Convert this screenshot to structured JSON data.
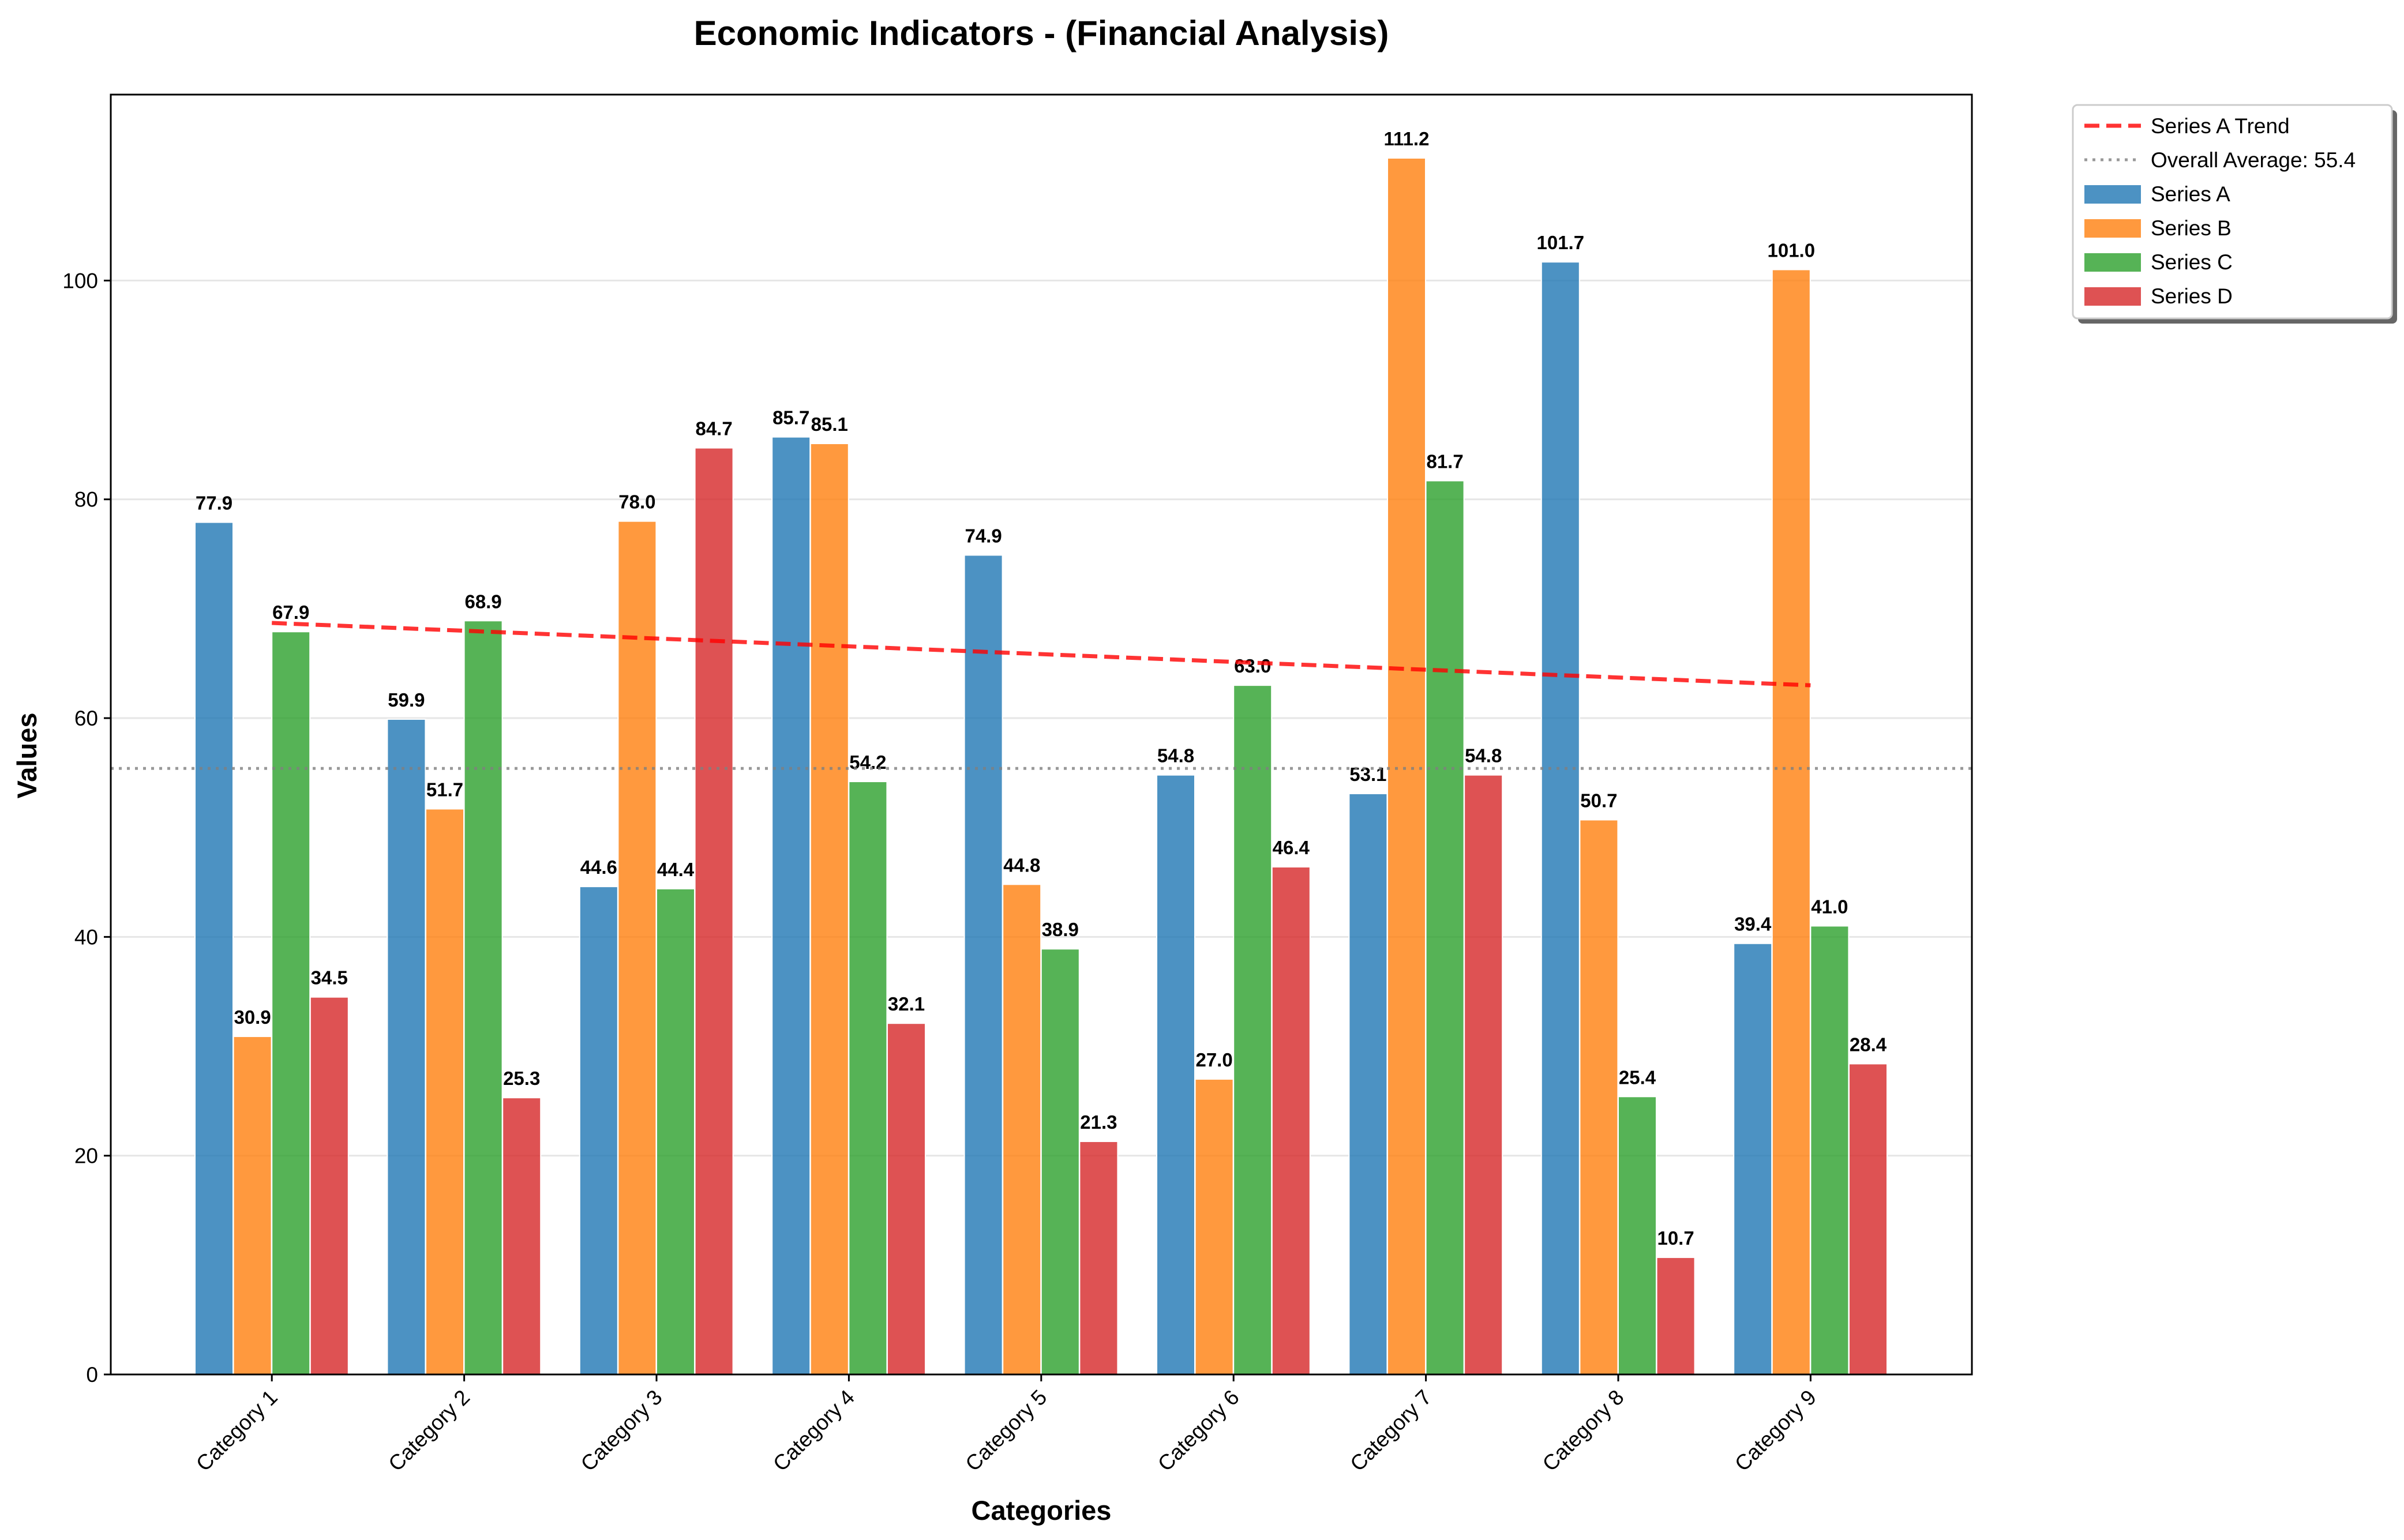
{
  "chart_data": {
    "type": "bar",
    "title": "Economic Indicators - (Financial Analysis)",
    "xlabel": "Categories",
    "ylabel": "Values",
    "ylim": [
      0,
      117
    ],
    "yticks": [
      0,
      20,
      40,
      60,
      80,
      100
    ],
    "grid": "horizontal",
    "legend_position": "outside-top-right",
    "categories": [
      "Category 1",
      "Category 2",
      "Category 3",
      "Category 4",
      "Category 5",
      "Category 6",
      "Category 7",
      "Category 8",
      "Category 9"
    ],
    "series": [
      {
        "name": "Series A",
        "color": "#1f77b4",
        "values": [
          77.9,
          59.9,
          44.6,
          85.7,
          74.9,
          54.8,
          53.1,
          101.7,
          39.4
        ]
      },
      {
        "name": "Series B",
        "color": "#ff7f0e",
        "values": [
          30.9,
          51.7,
          78.0,
          85.1,
          44.8,
          27.0,
          111.2,
          50.7,
          101.0
        ]
      },
      {
        "name": "Series C",
        "color": "#2ca02c",
        "values": [
          67.9,
          68.9,
          44.4,
          54.2,
          38.9,
          63.0,
          81.7,
          25.4,
          41.0
        ]
      },
      {
        "name": "Series D",
        "color": "#d62728",
        "values": [
          34.5,
          25.3,
          84.7,
          32.1,
          21.3,
          46.4,
          54.8,
          10.7,
          28.4
        ]
      }
    ],
    "value_labels": {
      "Series A": [
        "77.9",
        "59.9",
        "44.6",
        "85.7",
        "74.9",
        "54.8",
        "53.1",
        "101.7",
        "39.4"
      ],
      "Series B": [
        "30.9",
        "51.7",
        "78.0",
        "85.1",
        "44.8",
        "27.0",
        "111.2",
        "50.7",
        "101.0"
      ],
      "Series C": [
        "67.9",
        "68.9",
        "44.4",
        "54.2",
        "38.9",
        "63.0",
        "81.7",
        "25.4",
        "41.0"
      ],
      "Series D": [
        "34.5",
        "25.3",
        "84.7",
        "32.1",
        "21.3",
        "46.4",
        "54.8",
        "10.7",
        "28.4"
      ]
    },
    "trend_line": {
      "name": "Series A Trend",
      "color": "#ff0000",
      "style": "dashed",
      "start": 68.7,
      "end": 63.0
    },
    "average_line": {
      "name": "Overall Average: 55.4",
      "value": 55.4,
      "color": "#808080",
      "style": "dotted"
    },
    "legend": [
      "Series A Trend",
      "Overall Average: 55.4",
      "Series A",
      "Series B",
      "Series C",
      "Series D"
    ]
  }
}
